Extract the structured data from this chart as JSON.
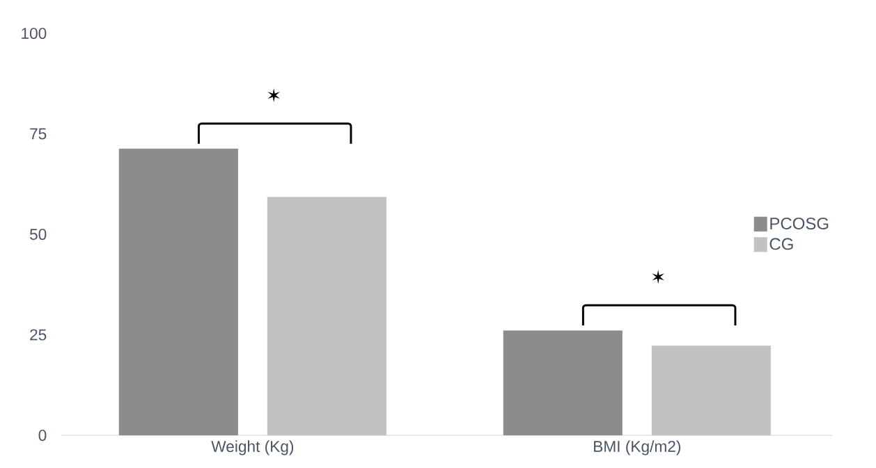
{
  "chart_data": {
    "type": "bar",
    "categories": [
      "Weight (Kg)",
      "BMI (Kg/m2)"
    ],
    "series": [
      {
        "name": "PCOSG",
        "color": "#8c8c8c",
        "values": [
          71.3,
          26.1
        ]
      },
      {
        "name": "CG",
        "color": "#c2c2c2",
        "values": [
          59.3,
          22.3
        ]
      }
    ],
    "ylim": [
      0,
      100
    ],
    "yticks": [
      0,
      25,
      50,
      75,
      100
    ],
    "legend": "right",
    "annotations": [
      "✶",
      "✶"
    ]
  }
}
